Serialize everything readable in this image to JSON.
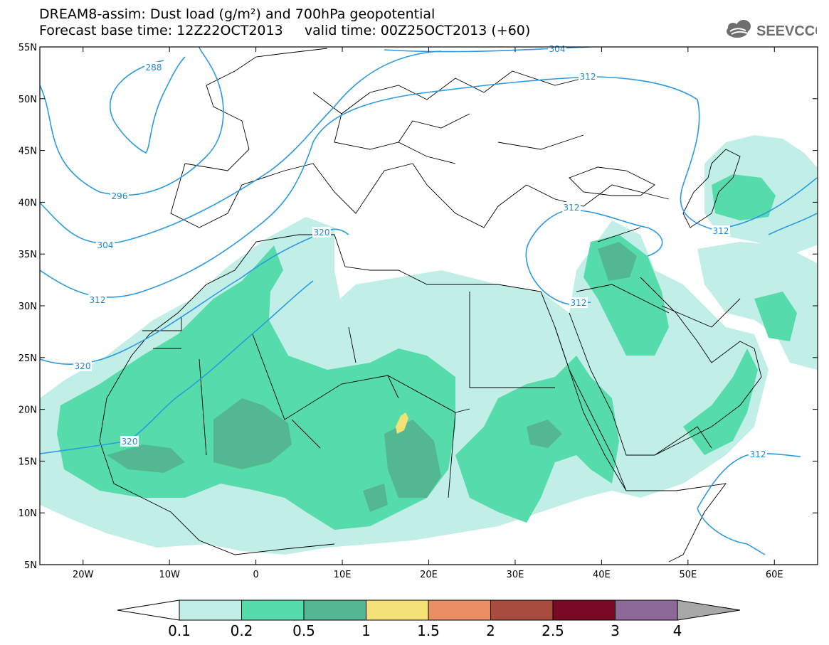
{
  "title": {
    "line1": "DREAM8-assim: Dust load (g/m²) and 700hPa geopotential",
    "line2": "Forecast base time: 12Z22OCT2013     valid time: 00Z25OCT2013 (+60)"
  },
  "logo": {
    "text": "SEEVCCC",
    "icon": "cloud-logo-icon"
  },
  "map": {
    "lon_range": [
      -25,
      65
    ],
    "lat_range": [
      5,
      55
    ],
    "lat_ticks": [
      "55N",
      "50N",
      "45N",
      "40N",
      "35N",
      "30N",
      "25N",
      "20N",
      "15N",
      "10N",
      "5N"
    ],
    "lon_ticks": [
      "20W",
      "10W",
      "0",
      "10E",
      "20E",
      "30E",
      "40E",
      "50E",
      "60E"
    ],
    "contour_labels": [
      "288",
      "296",
      "304",
      "312",
      "320",
      "320",
      "320",
      "304",
      "312",
      "312",
      "312",
      "312",
      "312"
    ]
  },
  "colorbar": {
    "labels": [
      "0.1",
      "0.2",
      "0.5",
      "1",
      "1.5",
      "2",
      "2.5",
      "3",
      "4"
    ],
    "colors": [
      "#c1efe8",
      "#55dcaa",
      "#53b891",
      "#f5e276",
      "#e98e65",
      "#a84c40",
      "#780b23",
      "#8d699a"
    ]
  },
  "colors": {
    "dust_light": "#c1efe8",
    "dust_mid": "#55dcaa",
    "dust_dark": "#53b891",
    "dust_yellow": "#f5e276",
    "contour": "#2c9ae0"
  }
}
